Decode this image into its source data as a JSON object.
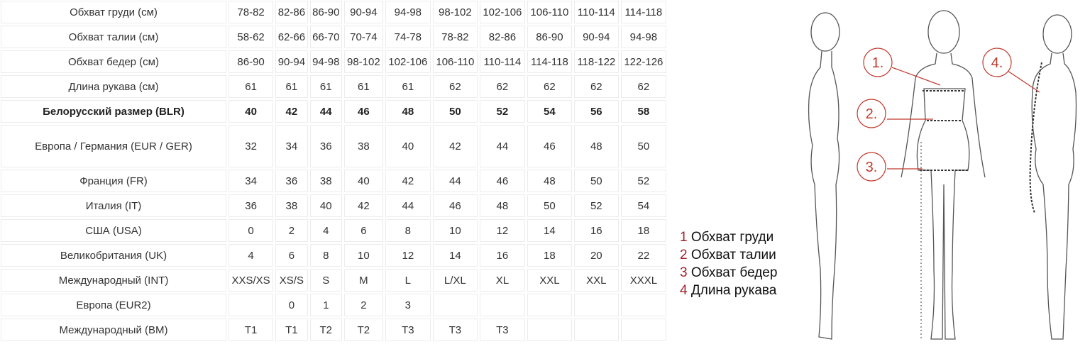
{
  "table": {
    "rows": [
      {
        "label": "Обхват груди (см)",
        "values": [
          "78-82",
          "82-86",
          "86-90",
          "90-94",
          "94-98",
          "98-102",
          "102-106",
          "106-110",
          "110-114",
          "114-118"
        ]
      },
      {
        "label": "Обхват талии (см)",
        "values": [
          "58-62",
          "62-66",
          "66-70",
          "70-74",
          "74-78",
          "78-82",
          "82-86",
          "86-90",
          "90-94",
          "94-98"
        ]
      },
      {
        "label": "Обхват бедер (см)",
        "values": [
          "86-90",
          "90-94",
          "94-98",
          "98-102",
          "102-106",
          "106-110",
          "110-114",
          "114-118",
          "118-122",
          "122-126"
        ]
      },
      {
        "label": "Длина рукава (см)",
        "values": [
          "61",
          "61",
          "61",
          "61",
          "61",
          "62",
          "62",
          "62",
          "62",
          "62"
        ]
      },
      {
        "label": "Белорусский размер (BLR)",
        "values": [
          "40",
          "42",
          "44",
          "46",
          "48",
          "50",
          "52",
          "54",
          "56",
          "58"
        ],
        "bold": true
      },
      {
        "label": "Европа / Германия (EUR / GER)",
        "values": [
          "32",
          "34",
          "36",
          "38",
          "40",
          "42",
          "44",
          "46",
          "48",
          "50"
        ],
        "tall": true
      },
      {
        "label": "Франция (FR)",
        "values": [
          "34",
          "36",
          "38",
          "40",
          "42",
          "44",
          "46",
          "48",
          "50",
          "52"
        ]
      },
      {
        "label": "Италия (IT)",
        "values": [
          "36",
          "38",
          "40",
          "42",
          "44",
          "46",
          "48",
          "50",
          "52",
          "54"
        ]
      },
      {
        "label": "США (USA)",
        "values": [
          "0",
          "2",
          "4",
          "6",
          "8",
          "10",
          "12",
          "14",
          "16",
          "18"
        ]
      },
      {
        "label": "Великобритания (UK)",
        "values": [
          "4",
          "6",
          "8",
          "10",
          "12",
          "14",
          "16",
          "18",
          "20",
          "22"
        ]
      },
      {
        "label": "Международный (INT)",
        "values": [
          "XXS/XS",
          "XS/S",
          "S",
          "M",
          "L",
          "L/XL",
          "XL",
          "XXL",
          "XXL",
          "XXXL"
        ]
      },
      {
        "label": "Европа (EUR2)",
        "values": [
          "",
          "0",
          "1",
          "2",
          "3",
          "",
          "",
          "",
          "",
          ""
        ]
      },
      {
        "label": "Международный (BM)",
        "values": [
          "T1",
          "T1",
          "T2",
          "T2",
          "T3",
          "T3",
          "T3",
          "",
          "",
          ""
        ]
      }
    ]
  },
  "legend": [
    {
      "num": "1",
      "text": "Обхват груди"
    },
    {
      "num": "2",
      "text": "Обхват талии"
    },
    {
      "num": "3",
      "text": "Обхват бедер"
    },
    {
      "num": "4",
      "text": "Длина рукава"
    }
  ],
  "figure": {
    "markers": [
      "1.",
      "2.",
      "3.",
      "4."
    ],
    "marker_color": "#c0392b"
  }
}
